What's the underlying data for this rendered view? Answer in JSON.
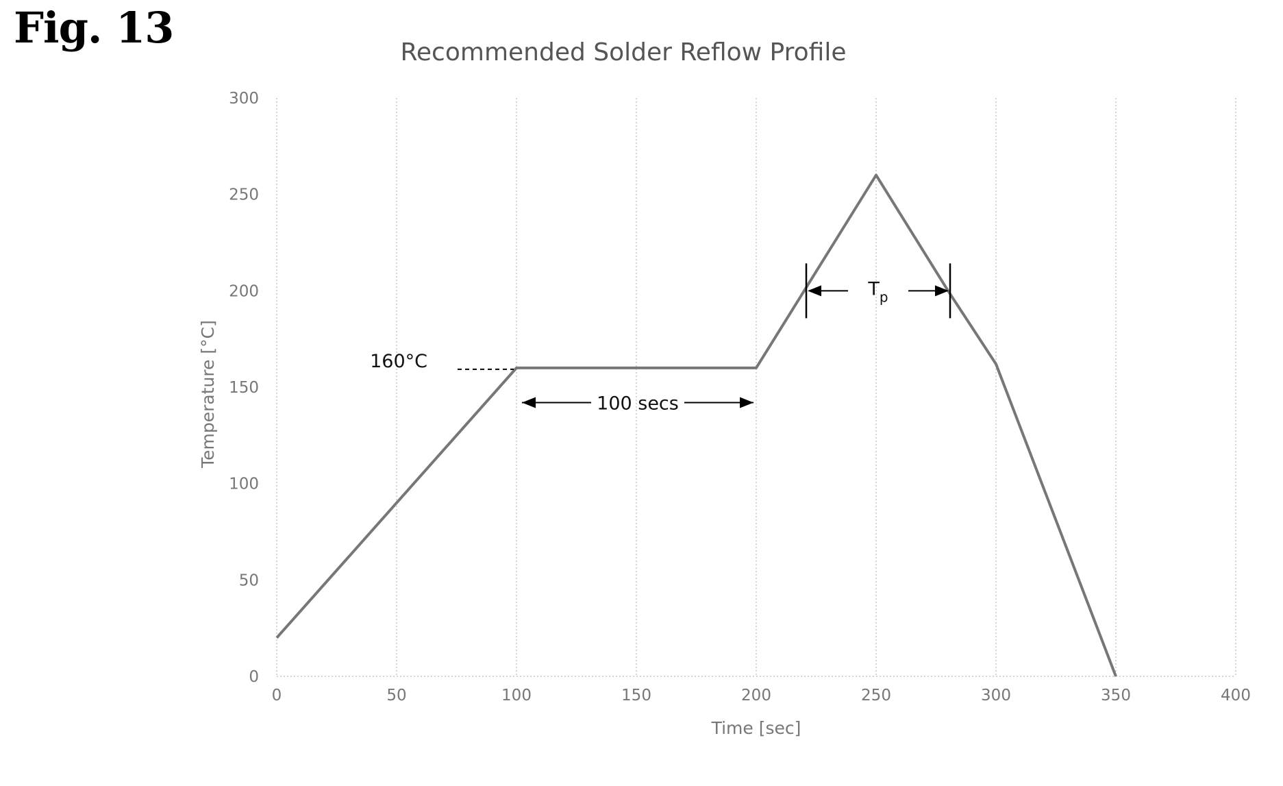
{
  "figure_label": "Fig. 13",
  "chart_data": {
    "type": "line",
    "title": "Recommended Solder Reflow Profile",
    "xlabel": "Time [sec]",
    "ylabel": "Temperature [°C]",
    "xlim": [
      0,
      400
    ],
    "ylim": [
      0,
      300
    ],
    "xticks": [
      0,
      50,
      100,
      150,
      200,
      250,
      300,
      350,
      400
    ],
    "yticks": [
      0,
      50,
      100,
      150,
      200,
      250,
      300
    ],
    "grid": {
      "vertical": true,
      "horizontal": false
    },
    "series": [
      {
        "x": [
          0,
          100,
          200,
          220,
          250,
          280,
          300,
          350
        ],
        "y": [
          20,
          160,
          160,
          200,
          260,
          200,
          162,
          0
        ],
        "color": "#777777"
      }
    ],
    "annotations": {
      "soak_temp": {
        "text": "160°C",
        "y": 160
      },
      "soak_duration": {
        "text": "100 secs",
        "x_start": 100,
        "x_end": 200,
        "y": 142
      },
      "peak_window": {
        "text_main": "T",
        "text_sub": "p",
        "x_start": 220,
        "x_end": 280,
        "y": 200
      }
    }
  }
}
